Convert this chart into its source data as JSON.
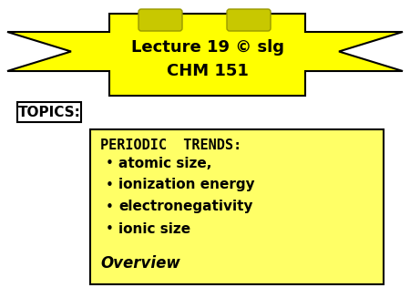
{
  "bg_color": "#ffffff",
  "banner_yellow": "#ffff00",
  "banner_dark": "#c8c800",
  "banner_title": "Lecture 19 © slg",
  "banner_subtitle": "CHM 151",
  "topics_label": "TOPICS:",
  "box_color": "#ffff66",
  "box_title": "PERIODIC  TRENDS:",
  "bullet_items": [
    "   atomic size,",
    "   ionization energy",
    "   electronegativity",
    "   ionic size"
  ],
  "box_footer": " Overview",
  "title_fontsize": 13,
  "subtitle_fontsize": 13,
  "body_fontsize": 11,
  "topics_fontsize": 11
}
